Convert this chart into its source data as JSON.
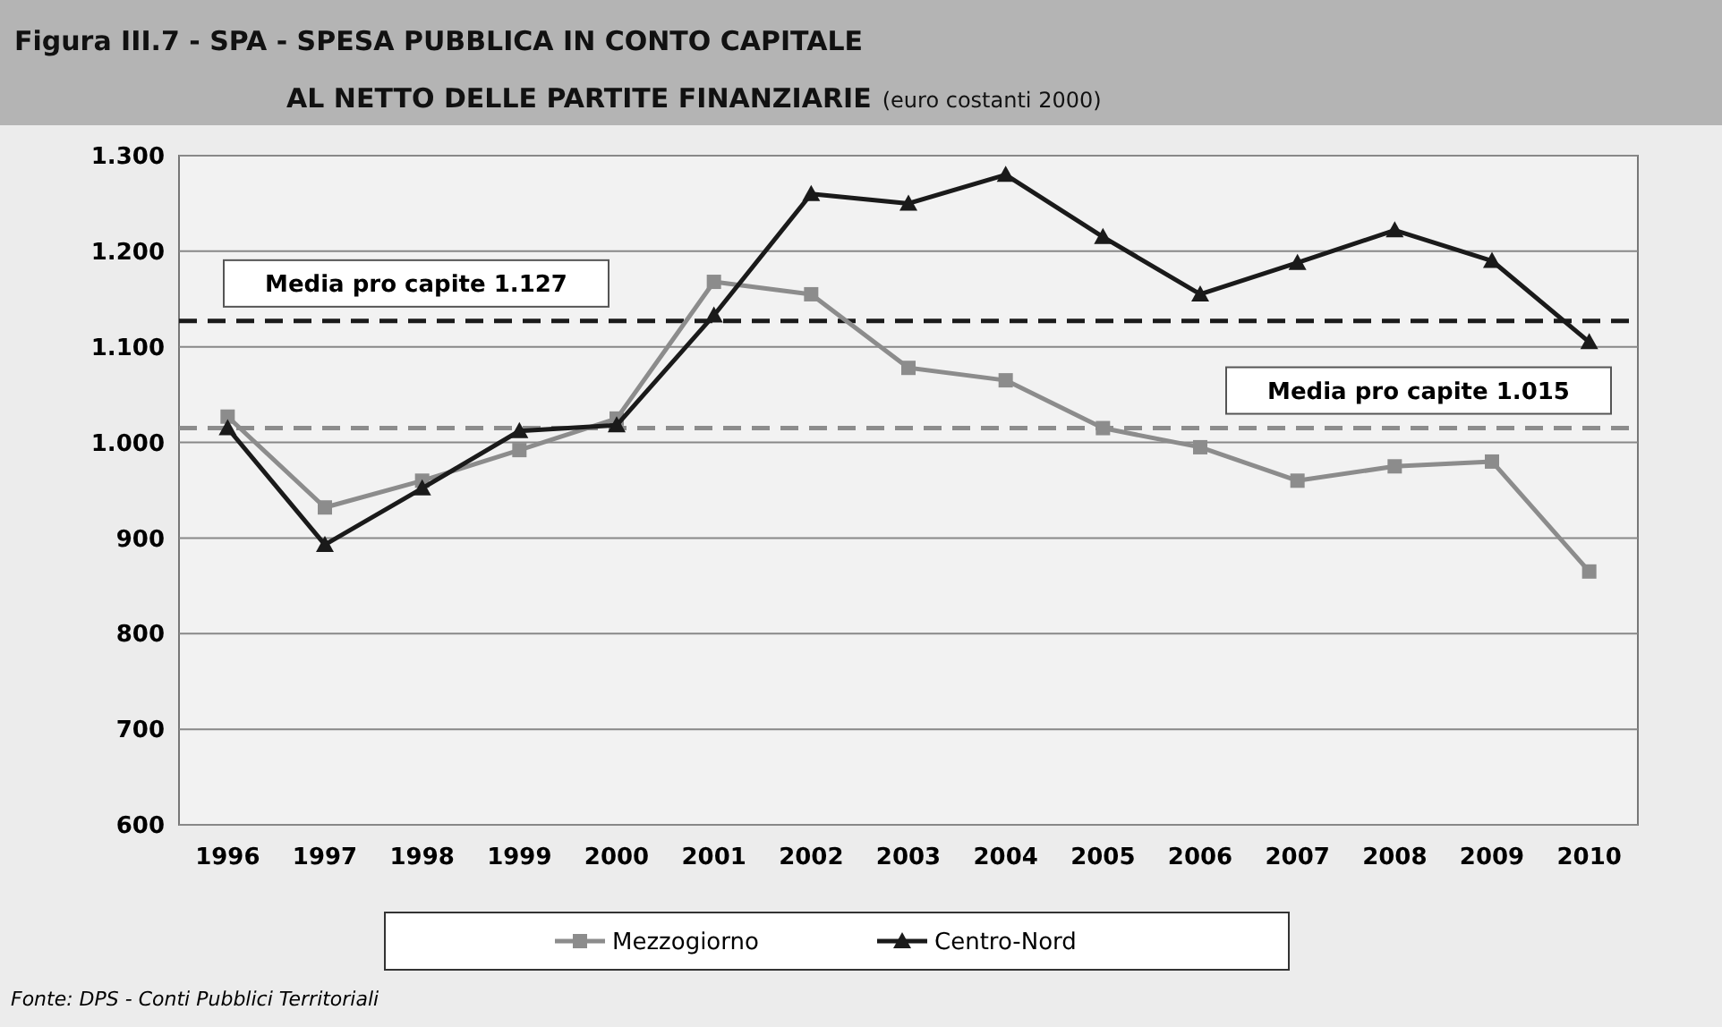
{
  "chart_data": {
    "type": "line",
    "title": "Figura III.7 -  SPA - SPESA PUBBLICA IN CONTO CAPITALE AL NETTO DELLE PARTITE FINANZIARIE",
    "subtitle": "(euro costanti 2000)",
    "categories": [
      "1996",
      "1997",
      "1998",
      "1999",
      "2000",
      "2001",
      "2002",
      "2003",
      "2004",
      "2005",
      "2006",
      "2007",
      "2008",
      "2009",
      "2010"
    ],
    "series": [
      {
        "name": "Mezzogiorno",
        "color": "#8c8c8c",
        "marker": "square",
        "values": [
          1027,
          932,
          960,
          992,
          1025,
          1168,
          1155,
          1078,
          1065,
          1015,
          995,
          960,
          975,
          980,
          865
        ]
      },
      {
        "name": "Centro-Nord",
        "color": "#1a1a1a",
        "marker": "triangle",
        "values": [
          1015,
          893,
          952,
          1012,
          1018,
          1133,
          1260,
          1250,
          1280,
          1215,
          1155,
          1188,
          1222,
          1190,
          1105
        ]
      }
    ],
    "ylim": [
      600,
      1300
    ],
    "yticks": [
      {
        "value": 600,
        "label": "600"
      },
      {
        "value": 700,
        "label": "700"
      },
      {
        "value": 800,
        "label": "800"
      },
      {
        "value": 900,
        "label": "900"
      },
      {
        "value": 1000,
        "label": "1.000"
      },
      {
        "value": 1100,
        "label": "1.100"
      },
      {
        "value": 1200,
        "label": "1.200"
      },
      {
        "value": 1300,
        "label": "1.300"
      }
    ],
    "ref_lines": [
      {
        "axis": "y",
        "value": 1127,
        "label": "Media pro capite 1.127",
        "color": "#1a1a1a",
        "line_style": "dashed"
      },
      {
        "axis": "y",
        "value": 1015,
        "label": "Media pro capite 1.015",
        "color": "#8c8c8c",
        "line_style": "dashed"
      }
    ],
    "grid": "y",
    "legend": "bottom",
    "line_style": "solid",
    "annotations": [
      "Fonte: DPS - Conti Pubblici Territoriali"
    ]
  }
}
